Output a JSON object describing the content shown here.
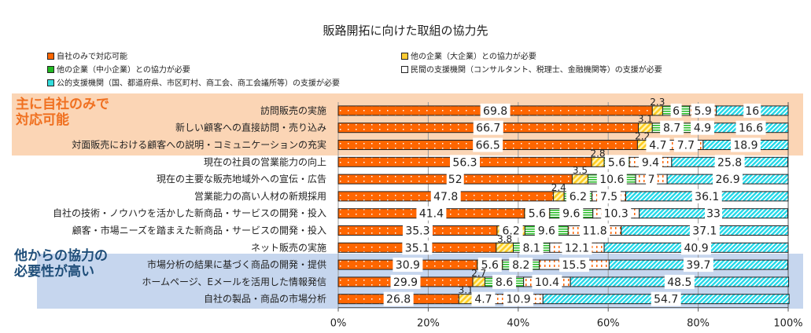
{
  "chart_data": {
    "type": "bar",
    "stacked": true,
    "orientation": "horizontal",
    "title": "販路開拓に向けた取組の協力先",
    "xlim": [
      0,
      100
    ],
    "xticks": [
      "0%",
      "20%",
      "40%",
      "60%",
      "80%",
      "100%"
    ],
    "categories": [
      "訪問販売の実施",
      "新しい顧客への直接訪問・売り込み",
      "対面販売における顧客への説明・コミュニケーションの充実",
      "現在の社員の営業能力の向上",
      "現在の主要な販売地域外への宣伝・広告",
      "営業能力の高い人材の新規採用",
      "自社の技術・ノウハウを活かした新商品・サービスの開発・投入",
      "顧客・市場ニーズを踏まえた新商品・サービスの開発・投入",
      "ネット販売の実施",
      "市場分析の結果に基づく商品の開発・提供",
      "ホームページ、Eメールを活用した情報発信",
      "自社の製品・商品の市場分析"
    ],
    "series": [
      {
        "name": "自社のみで対応可能",
        "color": "#ff6600",
        "values": [
          69.8,
          66.7,
          66.5,
          56.3,
          52,
          47.8,
          41.4,
          35.3,
          35.1,
          30.9,
          29.9,
          26.8
        ]
      },
      {
        "name": "他の企業（大企業）との協力が必要",
        "color": "#ffcc33",
        "values": [
          2.3,
          3.1,
          2.2,
          2.8,
          3.5,
          2.4,
          5.6,
          6.2,
          3.8,
          5.6,
          2.7,
          3.1
        ]
      },
      {
        "name": "他の企業（中小企業）との協力が必要",
        "color": "#22bb22",
        "values": [
          6.0,
          8.7,
          4.7,
          5.6,
          10.6,
          6.2,
          9.6,
          9.6,
          8.1,
          8.2,
          8.6,
          4.7
        ]
      },
      {
        "name": "民間の支援機関（コンサルタント、税理士、金融機関等）の支援が必要",
        "color": "#ffffff",
        "values": [
          5.9,
          4.9,
          7.7,
          9.4,
          7.0,
          7.5,
          10.3,
          11.8,
          12.1,
          15.5,
          10.4,
          10.9
        ]
      },
      {
        "name": "公的支援機関（国、都道府県、市区町村、商工会、商工会議所等）の支援が必要",
        "color": "#33dddd",
        "values": [
          16.0,
          16.6,
          18.9,
          25.8,
          26.9,
          36.1,
          33.0,
          37.1,
          40.9,
          39.7,
          48.5,
          54.7
        ]
      }
    ],
    "legend": "top"
  },
  "notes": {
    "top": [
      "主に自社のみで",
      "対応可能"
    ],
    "bottom": [
      "他からの協力の",
      "必要性が高い"
    ]
  }
}
